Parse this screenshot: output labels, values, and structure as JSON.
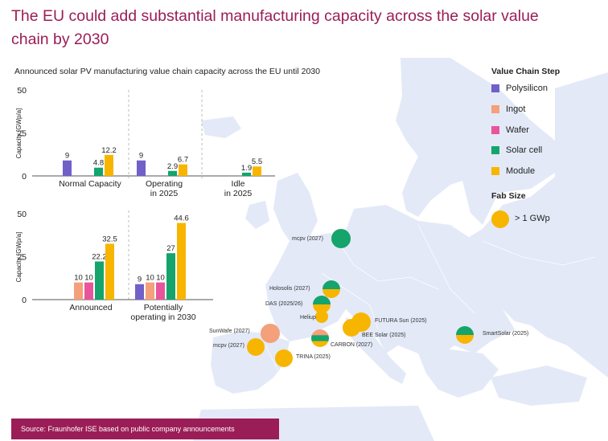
{
  "headline": "The EU could add substantial manufacturing capacity across the solar value chain by 2030",
  "subtitle": "Announced solar PV manufacturing value chain capacity across the EU until 2030",
  "source": "Source: Fraunhofer ISE based on public company announcements",
  "colors": {
    "Polysilicon": "#7060c8",
    "Ingot": "#f4a07a",
    "Wafer": "#e8559b",
    "Solar cell": "#14a46c",
    "Module": "#f7b500",
    "map_land": "#e3e9f7",
    "headline": "#9b1d57"
  },
  "legend": {
    "title": "Value Chain Step",
    "items": [
      "Polysilicon",
      "Ingot",
      "Wafer",
      "Solar cell",
      "Module"
    ],
    "fab_title": "Fab Size",
    "fab_label": "> 1 GWp"
  },
  "chart_data": [
    {
      "type": "bar",
      "ylabel": "Capacity [GWp/a]",
      "ylim": [
        0,
        50
      ],
      "yticks": [
        0,
        25,
        50
      ],
      "categories": [
        "Normal Capacity",
        "Operating in 2025",
        "Idle in 2025"
      ],
      "series": [
        {
          "name": "Polysilicon",
          "values": [
            9,
            9,
            null
          ]
        },
        {
          "name": "Ingot",
          "values": [
            null,
            null,
            null
          ]
        },
        {
          "name": "Wafer",
          "values": [
            null,
            null,
            null
          ]
        },
        {
          "name": "Solar cell",
          "values": [
            4.8,
            2.9,
            1.9
          ]
        },
        {
          "name": "Module",
          "values": [
            12.2,
            6.7,
            5.5
          ]
        }
      ]
    },
    {
      "type": "bar",
      "ylabel": "Capacity [GWp/a]",
      "ylim": [
        0,
        50
      ],
      "yticks": [
        0,
        25,
        50
      ],
      "categories": [
        "Announced",
        "Potentially operating in 2030"
      ],
      "series": [
        {
          "name": "Polysilicon",
          "values": [
            null,
            9
          ]
        },
        {
          "name": "Ingot",
          "values": [
            10,
            10
          ]
        },
        {
          "name": "Wafer",
          "values": [
            10,
            10
          ]
        },
        {
          "name": "Solar cell",
          "values": [
            22.2,
            27
          ]
        },
        {
          "name": "Module",
          "values": [
            32.5,
            44.6
          ]
        }
      ]
    }
  ],
  "sites": [
    {
      "label": "mcpv (2027)",
      "steps": [
        "Solar cell"
      ]
    },
    {
      "label": "Holosolis (2027)",
      "steps": [
        "Solar cell",
        "Module"
      ]
    },
    {
      "label": "DAS (2025/26)",
      "steps": [
        "Solar cell",
        "Module"
      ]
    },
    {
      "label": "Heliup",
      "steps": [
        "Module"
      ]
    },
    {
      "label": "FUTURA Sun (2025)",
      "steps": [
        "Module"
      ]
    },
    {
      "label": "BEE Solar (2025)",
      "steps": [
        "Module"
      ]
    },
    {
      "label": "SmartSolar (2025)",
      "steps": [
        "Solar cell",
        "Module"
      ]
    },
    {
      "label": "SunWafe (2027)",
      "steps": [
        "Ingot"
      ]
    },
    {
      "label": "mcpv (2027)",
      "steps": [
        "Module"
      ]
    },
    {
      "label": "CARBON (2027)",
      "steps": [
        "Ingot",
        "Solar cell",
        "Module"
      ]
    },
    {
      "label": "TRINA (2025)",
      "steps": [
        "Module"
      ]
    }
  ]
}
